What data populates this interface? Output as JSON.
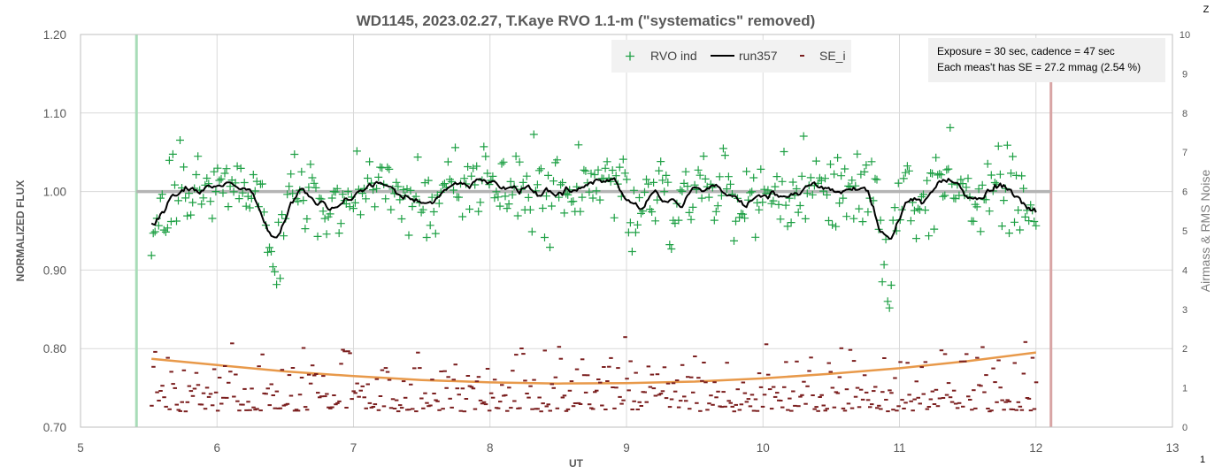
{
  "chart_data": {
    "type": "scatter",
    "title": "WD1145, 2023.02.27, T.Kaye RVO 1.1-m (\"systematics\" removed)",
    "xlabel": "UT",
    "ylabel": "NORMALIZED FLUX",
    "y2label": "Airmass & RMS Noise",
    "xlim": [
      5,
      13
    ],
    "ylim": [
      0.7,
      1.2
    ],
    "y2lim": [
      0,
      10
    ],
    "xticks": [
      "5",
      "6",
      "7",
      "8",
      "9",
      "10",
      "11",
      "12",
      "13"
    ],
    "yticks": [
      "0.70",
      "0.80",
      "0.90",
      "1.00",
      "1.10",
      "1.20"
    ],
    "y2ticks": [
      "0",
      "1",
      "2",
      "3",
      "4",
      "5",
      "6",
      "7",
      "8",
      "9",
      "10"
    ],
    "corner_top": "Z",
    "corner_bottom": "1",
    "grid": true,
    "legend_position": "top-center",
    "legend": [
      "RVO ind",
      "run357",
      "SE_i"
    ],
    "annotation": [
      "Exposure = 30 sec, cadence = 47 sec",
      "Each  meas't has SE = 27.2 mmag (2.54 %)"
    ],
    "reference_level": 1.0,
    "window_start_ut": 5.41,
    "window_end_ut": 12.11,
    "data_range_ut": [
      5.52,
      12.0
    ],
    "dips": [
      {
        "ut": 6.41,
        "depth": 0.11,
        "width": 0.06
      },
      {
        "ut": 10.91,
        "depth": 0.115,
        "width": 0.05
      }
    ],
    "series": [
      {
        "name": "RVO ind",
        "marker": "+",
        "color": "#1fa045"
      },
      {
        "name": "run357",
        "marker": "line",
        "color": "#000000"
      },
      {
        "name": "SE_i",
        "marker": "dash",
        "color": "#7b1f1f",
        "axis": "right",
        "typical": [
          0.4,
          1.5
        ]
      },
      {
        "marker": "line",
        "color": "#e8994a",
        "axis": "right",
        "points": [
          [
            5.52,
            1.74
          ],
          [
            6.0,
            1.58
          ],
          [
            6.5,
            1.42
          ],
          [
            7.0,
            1.3
          ],
          [
            7.5,
            1.2
          ],
          [
            8.0,
            1.14
          ],
          [
            8.5,
            1.11
          ],
          [
            9.0,
            1.12
          ],
          [
            9.5,
            1.16
          ],
          [
            10.0,
            1.24
          ],
          [
            10.5,
            1.36
          ],
          [
            11.0,
            1.5
          ],
          [
            11.5,
            1.68
          ],
          [
            12.0,
            1.9
          ]
        ]
      },
      {
        "name": "",
        "marker": "line",
        "color": "#a8dcb8",
        "note": "start marker"
      },
      {
        "name": "",
        "marker": "line",
        "color": "#d8a4a4",
        "note": "end marker"
      }
    ]
  }
}
